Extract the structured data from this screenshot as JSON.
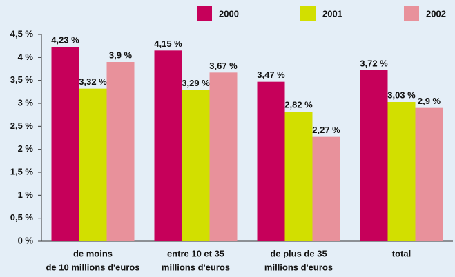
{
  "chart_data": {
    "type": "bar",
    "categories": [
      [
        "de moins",
        "de 10 millions d'euros"
      ],
      [
        "entre 10 et 35",
        "millions d'euros"
      ],
      [
        "de plus de 35",
        "millions d'euros"
      ],
      [
        "total"
      ]
    ],
    "series": [
      {
        "name": "2000",
        "color": "#c6005a",
        "values": [
          4.23,
          4.15,
          3.47,
          3.72
        ],
        "value_labels": [
          "4,23 %",
          "4,15 %",
          "3,47 %",
          "3,72 %"
        ]
      },
      {
        "name": "2001",
        "color": "#d2df00",
        "values": [
          3.32,
          3.29,
          2.82,
          3.03
        ],
        "value_labels": [
          "3,32 %",
          "3,29 %",
          "2,82 %",
          "3,03 %"
        ]
      },
      {
        "name": "2002",
        "color": "#e8919b",
        "values": [
          3.9,
          3.67,
          2.27,
          2.9
        ],
        "value_labels": [
          "3,9 %",
          "3,67 %",
          "2,27 %",
          "2,9 %"
        ]
      }
    ],
    "ylim": [
      0,
      4.5
    ],
    "yticks": [
      {
        "value": 0,
        "label": "0 %"
      },
      {
        "value": 0.5,
        "label": "0,5 %"
      },
      {
        "value": 1,
        "label": "1 %"
      },
      {
        "value": 1.5,
        "label": "1,5 %"
      },
      {
        "value": 2,
        "label": "2 %"
      },
      {
        "value": 2.5,
        "label": "2,5 %"
      },
      {
        "value": 3,
        "label": "3 %"
      },
      {
        "value": 3.5,
        "label": "3,5 %"
      },
      {
        "value": 4,
        "label": "4 %"
      },
      {
        "value": 4.5,
        "label": "4,5 %"
      }
    ],
    "grid": false
  }
}
